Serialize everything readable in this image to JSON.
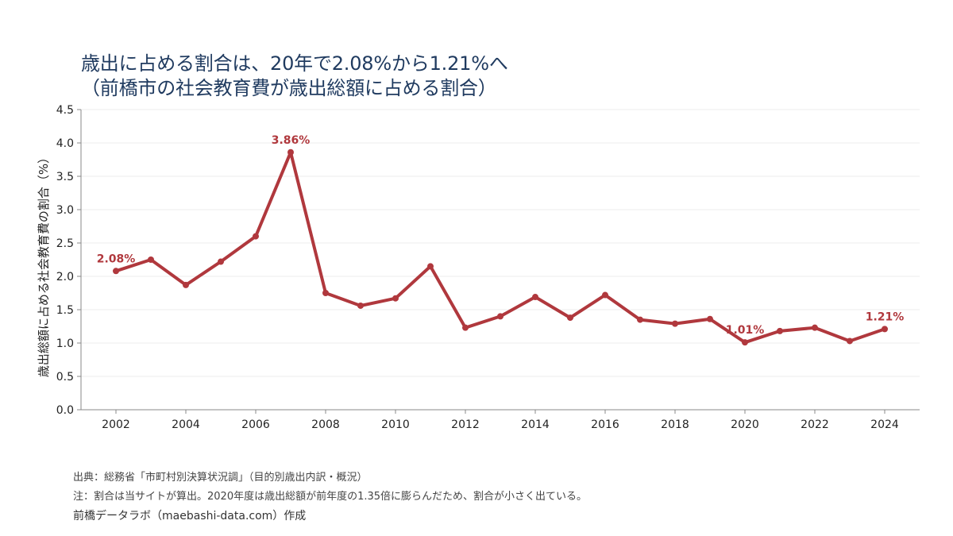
{
  "title": {
    "line1": "歳出に占める割合は、20年で2.08%から1.21%へ",
    "line2": "（前橋市の社会教育費が歳出総額に占める割合）"
  },
  "colors": {
    "line": "#b0383d",
    "title": "#1f3a5f",
    "grid": "#eeeeee",
    "axis": "#888888"
  },
  "chart_data": {
    "type": "line",
    "title": "歳出に占める割合は、20年で2.08%から1.21%へ（前橋市の社会教育費が歳出総額に占める割合）",
    "xlabel": "",
    "ylabel": "歳出総額に占める社会教育費の割合（%）",
    "x": [
      2002,
      2003,
      2004,
      2005,
      2006,
      2007,
      2008,
      2009,
      2010,
      2011,
      2012,
      2013,
      2014,
      2015,
      2016,
      2017,
      2018,
      2019,
      2020,
      2021,
      2022,
      2023,
      2024
    ],
    "series": [
      {
        "values": [
          2.08,
          2.25,
          1.87,
          2.22,
          2.6,
          3.86,
          1.75,
          1.56,
          1.67,
          2.15,
          1.23,
          1.4,
          1.69,
          1.38,
          1.72,
          1.35,
          1.29,
          1.36,
          1.01,
          1.18,
          1.23,
          1.03,
          1.21
        ]
      }
    ],
    "xticks": [
      2002,
      2004,
      2006,
      2008,
      2010,
      2012,
      2014,
      2016,
      2018,
      2020,
      2022,
      2024
    ],
    "yticks": [
      "0.0",
      "0.5",
      "1.0",
      "1.5",
      "2.0",
      "2.5",
      "3.0",
      "3.5",
      "4.0",
      "4.5"
    ],
    "xlim": [
      2001,
      2025
    ],
    "ylim": [
      0,
      4.5
    ],
    "grid": true,
    "annotations": [
      {
        "x": 2002,
        "y": 2.08,
        "text": "2.08%"
      },
      {
        "x": 2007,
        "y": 3.86,
        "text": "3.86%"
      },
      {
        "x": 2020,
        "y": 1.01,
        "text": "1.01%"
      },
      {
        "x": 2024,
        "y": 1.21,
        "text": "1.21%"
      }
    ]
  },
  "footer": {
    "source": "出典：総務省「市町村別決算状況調」（目的別歳出内訳・概況）",
    "note": "注：割合は当サイトが算出。2020年度は歳出総額が前年度の1.35倍に膨らんだため、割合が小さく出ている。",
    "credit": "前橋データラボ（maebashi-data.com）作成"
  }
}
